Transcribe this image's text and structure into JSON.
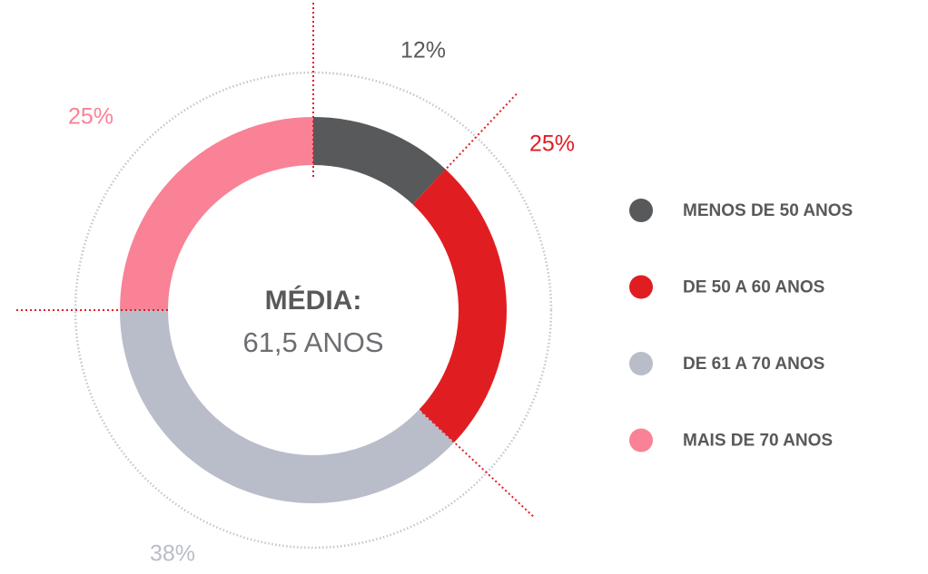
{
  "chart_data": {
    "type": "donut",
    "center_title": "MÉDIA:",
    "center_text": "61,5 ANOS",
    "categories": [
      "MENOS DE 50 ANOS",
      "DE 50 A 60 ANOS",
      "DE 61 A 70 ANOS",
      "MAIS DE 70 ANOS"
    ],
    "values": [
      12,
      25,
      38,
      25
    ],
    "value_labels": [
      "12%",
      "25%",
      "38%",
      "25%"
    ],
    "colors": [
      "#58595b",
      "#e01e22",
      "#b9bdc9",
      "#f98296"
    ],
    "legend": "right"
  }
}
